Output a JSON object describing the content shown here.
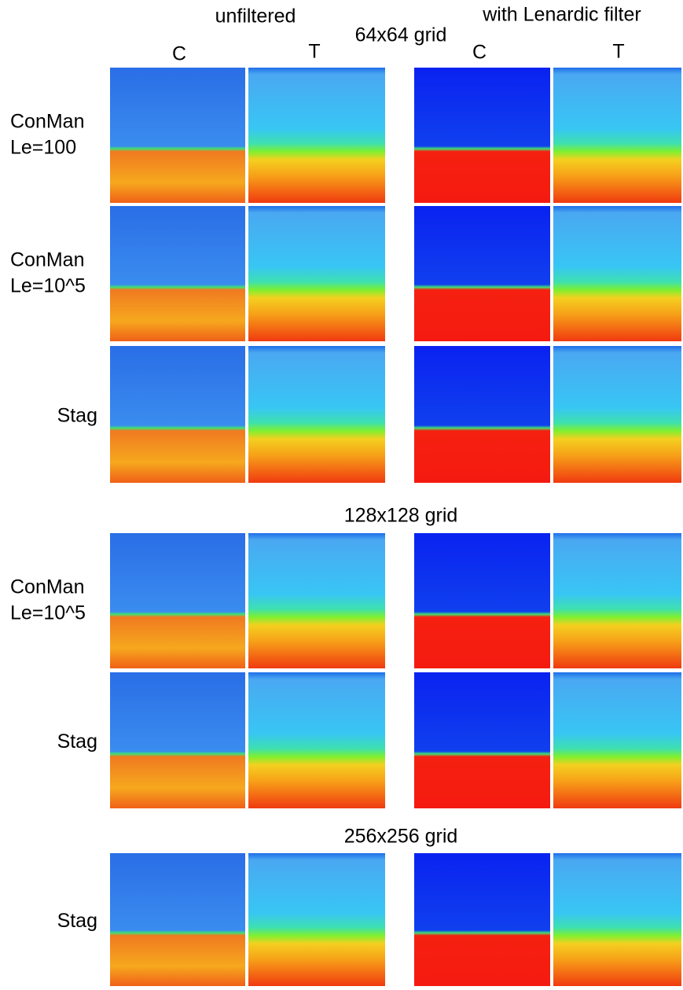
{
  "header": {
    "left_group": "unfiltered",
    "right_group": "with Lenardic filter",
    "columns": [
      "C",
      "T",
      "C",
      "T"
    ]
  },
  "sections": [
    {
      "title": "64x64 grid",
      "rows": [
        [
          "ConMan",
          "Le=100"
        ],
        [
          "ConMan",
          "Le=10^5"
        ],
        [
          "Stag"
        ]
      ]
    },
    {
      "title": "128x128 grid",
      "rows": [
        [
          "ConMan",
          "Le=10^5"
        ],
        [
          "Stag"
        ]
      ]
    },
    {
      "title": "256x256 grid",
      "rows": [
        [
          "Stag"
        ]
      ]
    }
  ]
}
